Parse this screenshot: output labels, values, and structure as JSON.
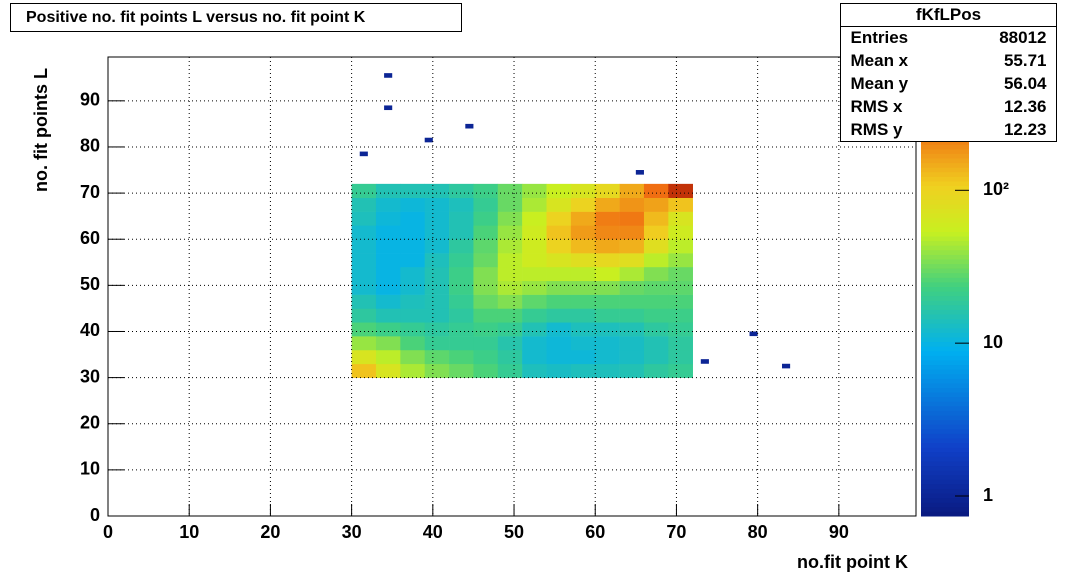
{
  "chart_data": {
    "type": "heatmap",
    "title": "Positive no. fit points L versus no. fit point K",
    "xlabel": "no.fit point K",
    "ylabel": "no. fit points  L",
    "xlim": [
      0,
      99.5
    ],
    "ylim": [
      0,
      99.5
    ],
    "xticks": [
      0,
      10,
      20,
      30,
      40,
      50,
      60,
      70,
      80,
      90
    ],
    "yticks": [
      0,
      10,
      20,
      30,
      40,
      50,
      60,
      70,
      80,
      90
    ],
    "grid": true,
    "log_z": true,
    "zlim": [
      0.74,
      745
    ],
    "zticks": [
      1,
      10,
      {
        "value": 100,
        "label": "10²"
      }
    ],
    "x_bins": [
      30,
      33,
      36,
      39,
      42,
      45,
      48,
      51,
      54,
      57,
      60,
      63,
      66,
      69,
      72
    ],
    "y_bins": [
      30,
      33,
      36,
      39,
      42,
      45,
      48,
      51,
      54,
      57,
      60,
      63,
      66,
      69,
      72
    ],
    "z": [
      [
        120,
        70,
        45,
        35,
        30,
        25,
        20,
        14,
        13,
        14,
        14,
        15,
        18,
        20
      ],
      [
        70,
        50,
        35,
        28,
        25,
        22,
        18,
        12,
        11,
        11,
        12,
        13,
        15,
        18
      ],
      [
        40,
        35,
        25,
        20,
        20,
        20,
        16,
        12,
        11,
        12,
        12,
        13,
        15,
        18
      ],
      [
        25,
        22,
        20,
        18,
        20,
        22,
        20,
        15,
        12,
        14,
        14,
        15,
        18,
        20
      ],
      [
        18,
        15,
        15,
        15,
        18,
        25,
        25,
        20,
        18,
        18,
        20,
        20,
        22,
        22
      ],
      [
        15,
        12,
        14,
        15,
        20,
        30,
        35,
        28,
        25,
        25,
        25,
        25,
        25,
        25
      ],
      [
        12,
        10,
        12,
        15,
        22,
        35,
        45,
        40,
        35,
        35,
        35,
        30,
        28,
        28
      ],
      [
        12,
        10,
        12,
        15,
        22,
        35,
        50,
        50,
        50,
        50,
        55,
        45,
        35,
        30
      ],
      [
        12,
        10,
        10,
        14,
        20,
        30,
        50,
        60,
        70,
        80,
        90,
        80,
        50,
        40
      ],
      [
        12,
        10,
        10,
        12,
        18,
        28,
        45,
        60,
        100,
        130,
        150,
        140,
        80,
        50
      ],
      [
        12,
        10,
        10,
        12,
        15,
        25,
        40,
        60,
        120,
        170,
        200,
        200,
        110,
        60
      ],
      [
        14,
        11,
        10,
        12,
        15,
        22,
        35,
        55,
        100,
        150,
        220,
        230,
        130,
        70
      ],
      [
        15,
        12,
        11,
        12,
        14,
        20,
        30,
        45,
        70,
        100,
        150,
        180,
        160,
        120
      ],
      [
        20,
        15,
        15,
        15,
        18,
        22,
        30,
        40,
        55,
        70,
        90,
        150,
        250,
        450
      ]
    ],
    "points": {
      "x": [
        31,
        34,
        34,
        39,
        44,
        65,
        73,
        79,
        83
      ],
      "y": [
        78,
        95,
        88,
        81,
        84,
        74,
        33,
        39,
        32
      ],
      "values": [
        1,
        1,
        1,
        1,
        1,
        1,
        1,
        1,
        1
      ]
    },
    "stats": {
      "name": "fKfLPos",
      "rows": [
        {
          "label": "Entries",
          "value": 88012
        },
        {
          "label": "Mean x",
          "value": 55.71
        },
        {
          "label": "Mean y",
          "value": 56.04
        },
        {
          "label": "RMS x",
          "value": 12.36
        },
        {
          "label": "RMS y",
          "value": 12.23
        }
      ]
    }
  }
}
